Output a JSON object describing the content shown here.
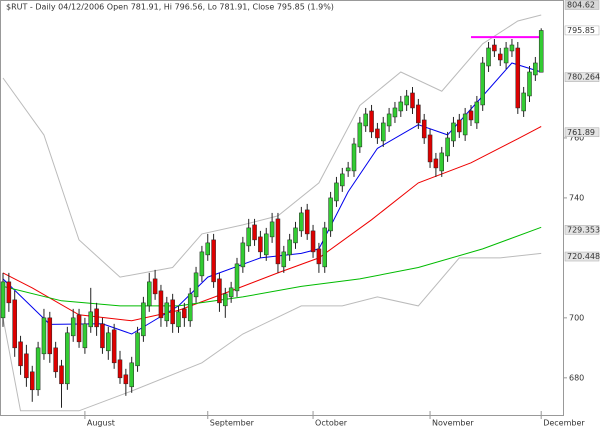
{
  "chart_data": {
    "type": "candlestick",
    "title": "$RUT - Daily 04/12/2006 Open 781.91, Hi 796.56, Lo 781.91, Close 795.85 (1.9%)",
    "categories": [
      null,
      null,
      null,
      null,
      null,
      null,
      null,
      null,
      null,
      null,
      null,
      null,
      null,
      null,
      "August",
      null,
      null,
      null,
      null,
      null,
      null,
      null,
      null,
      null,
      null,
      null,
      null,
      null,
      null,
      null,
      null,
      null,
      null,
      null,
      null,
      "September",
      null,
      null,
      null,
      null,
      null,
      null,
      null,
      null,
      null,
      null,
      null,
      null,
      null,
      null,
      null,
      null,
      null,
      "October",
      null,
      null,
      null,
      null,
      null,
      null,
      null,
      null,
      null,
      null,
      null,
      null,
      null,
      null,
      null,
      null,
      null,
      null,
      null,
      "November",
      null,
      null,
      null,
      null,
      null,
      null,
      null,
      null,
      null,
      null,
      null,
      null,
      null,
      null,
      null,
      null,
      null,
      null,
      "December"
    ],
    "open": [
      700,
      712,
      706,
      692,
      688,
      682,
      676,
      688,
      700,
      690,
      684,
      678,
      694,
      701,
      690,
      697,
      703,
      698,
      689,
      696,
      686,
      681,
      677,
      684,
      694,
      704,
      713,
      709,
      699,
      706,
      697,
      703,
      699,
      707,
      714,
      721,
      726,
      713,
      704,
      707,
      709,
      717,
      724,
      731,
      727,
      721,
      727,
      733,
      717,
      721,
      725,
      729,
      736,
      729,
      723,
      717,
      729,
      739,
      744,
      749,
      749,
      757,
      764,
      769,
      763,
      759,
      764,
      767,
      769,
      771,
      775,
      771,
      766,
      761,
      753,
      749,
      754,
      759,
      766,
      761,
      769,
      765,
      771,
      784,
      791,
      788,
      785,
      789,
      790,
      769,
      774,
      781,
      781.91
    ],
    "high": [
      715,
      715,
      709,
      694,
      691,
      684,
      692,
      703,
      702,
      692,
      686,
      697,
      703,
      703,
      700,
      710,
      705,
      700,
      697,
      698,
      689,
      683,
      687,
      697,
      707,
      715,
      716,
      711,
      707,
      708,
      704,
      705,
      710,
      717,
      724,
      728,
      728,
      715,
      710,
      712,
      720,
      727,
      733,
      733,
      729,
      730,
      735,
      735,
      724,
      728,
      732,
      737,
      738,
      731,
      725,
      732,
      742,
      747,
      750,
      752,
      760,
      767,
      770,
      771,
      765,
      767,
      770,
      772,
      774,
      776,
      777,
      773,
      768,
      763,
      755,
      757,
      762,
      767,
      768,
      770,
      771,
      774,
      787,
      792,
      793,
      790,
      792,
      793,
      792,
      777,
      784,
      787,
      796.56
    ],
    "low": [
      697,
      702,
      687,
      681,
      677,
      672,
      674,
      686,
      685,
      680,
      670,
      676,
      692,
      690,
      688,
      695,
      694,
      688,
      686,
      683,
      678,
      674,
      675,
      682,
      692,
      702,
      706,
      697,
      697,
      695,
      695,
      697,
      697,
      705,
      712,
      719,
      710,
      702,
      700,
      705,
      707,
      715,
      722,
      724,
      720,
      719,
      725,
      715,
      715,
      719,
      723,
      727,
      726,
      720,
      715,
      715,
      727,
      737,
      742,
      747,
      747,
      755,
      762,
      760,
      758,
      757,
      762,
      765,
      767,
      769,
      768,
      763,
      758,
      750,
      747,
      747,
      752,
      757,
      760,
      759,
      764,
      763,
      769,
      782,
      787,
      784,
      783,
      787,
      768,
      767,
      772,
      779,
      781.91
    ],
    "close": [
      712,
      705,
      690,
      684,
      680,
      676,
      690,
      700,
      688,
      682,
      678,
      695,
      700,
      692,
      698,
      702,
      697,
      690,
      695,
      685,
      680,
      678,
      685,
      695,
      705,
      712,
      708,
      700,
      705,
      698,
      702,
      700,
      708,
      715,
      722,
      725,
      712,
      705,
      708,
      710,
      718,
      725,
      730,
      726,
      722,
      728,
      732,
      718,
      722,
      726,
      730,
      735,
      728,
      722,
      718,
      730,
      740,
      745,
      748,
      750,
      758,
      765,
      768,
      762,
      760,
      765,
      768,
      770,
      772,
      774,
      770,
      765,
      760,
      752,
      750,
      755,
      760,
      765,
      762,
      768,
      766,
      772,
      785,
      790,
      789,
      786,
      790,
      791,
      770,
      775,
      782,
      785,
      795.85
    ],
    "up_color": "#33cc33",
    "down_color": "#dd0000",
    "ylim": [
      667.6,
      806
    ],
    "yticks": [
      680,
      700,
      740,
      760
    ],
    "overlays": [
      {
        "color": "#0000ee",
        "x": [
          0,
          8,
          17,
          22,
          30,
          35,
          44,
          51,
          54,
          59,
          64,
          71,
          76,
          82,
          87,
          92
        ],
        "values": [
          713,
          697.8,
          698,
          694.6,
          704,
          713.6,
          720,
          721.5,
          723,
          742,
          756.5,
          764.4,
          761,
          774,
          785,
          782
        ]
      },
      {
        "color": "#ee0000",
        "x": [
          0,
          5,
          13,
          22,
          30,
          39,
          47,
          54,
          63,
          71,
          80,
          88,
          92
        ],
        "values": [
          715,
          710,
          701,
          699,
          702.5,
          709,
          715,
          720,
          732.7,
          745,
          751.7,
          759.7,
          763.8
        ]
      },
      {
        "color": "#00bb00",
        "x": [
          0,
          10,
          20,
          30,
          41,
          51,
          61,
          71,
          82,
          92
        ],
        "values": [
          710.5,
          705.7,
          704,
          704,
          707,
          710.5,
          713,
          716.8,
          723,
          730.2
        ]
      },
      {
        "color": "#bbbbbb",
        "x": [
          0,
          7,
          13,
          20,
          29,
          34,
          41,
          47,
          54,
          61,
          68,
          75,
          82,
          88,
          92
        ],
        "values": [
          780,
          761,
          726,
          713.6,
          716.8,
          728,
          731,
          734,
          745,
          770.8,
          782,
          775.6,
          791.4,
          799,
          801
        ]
      },
      {
        "color": "#bbbbbb",
        "x": [
          0,
          3,
          13,
          22,
          34,
          41,
          51,
          58,
          64,
          71,
          78,
          85,
          92
        ],
        "values": [
          700,
          669,
          669,
          675.6,
          685,
          694.6,
          704,
          704,
          707,
          704,
          720,
          720,
          721.5
        ]
      }
    ],
    "resistance": {
      "value": 793.6,
      "x": [
        80,
        92
      ],
      "color": "#ff00ff"
    },
    "price_labels": [
      {
        "value": 804.62,
        "color": "#333333",
        "bg": "#d8d8d8"
      },
      {
        "value": 795.85,
        "color": "#333333",
        "bg": "#ffffff"
      },
      {
        "value": 780.264,
        "color": "#0000ee",
        "bg": "#e4e4e4"
      },
      {
        "value": 761.89,
        "color": "#ee0000",
        "bg": "#e4e4e4"
      },
      {
        "value": 729.353,
        "color": "#00aa00",
        "bg": "#e4e4e4"
      },
      {
        "value": 720.448,
        "color": "#777777",
        "bg": "#e4e4e4"
      }
    ]
  }
}
